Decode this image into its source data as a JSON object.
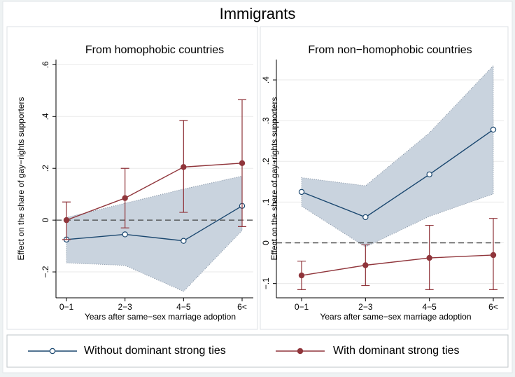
{
  "title": "Immigrants",
  "chart_data": [
    {
      "type": "line",
      "subtitle": "From homophobic countries",
      "y_label": "Effect on the share of gay−rights supporters",
      "x_label": "Years after same−sex marriage adoption",
      "categories": [
        "0−1",
        "2−3",
        "4−5",
        "6<"
      ],
      "ylim": [
        -0.3,
        0.62
      ],
      "yticks": [
        {
          "value": -0.2,
          "label": "−.2"
        },
        0,
        {
          "value": 0.2,
          "label": ".2"
        },
        {
          "value": 0.4,
          "label": ".4"
        },
        {
          "value": 0.6,
          "label": ".6"
        }
      ],
      "reference_line": 0,
      "grid": true,
      "series": [
        {
          "name": "Without dominant strong ties",
          "color": "#1a476f",
          "marker": "hollow",
          "interval": "band",
          "values": [
            -0.075,
            -0.055,
            -0.08,
            0.055
          ],
          "lower": [
            -0.165,
            -0.175,
            -0.275,
            -0.04
          ],
          "upper": [
            0.01,
            0.065,
            0.12,
            0.17
          ]
        },
        {
          "name": "With dominant strong ties",
          "color": "#90353b",
          "marker": "solid",
          "interval": "bars",
          "values": [
            0,
            0.085,
            0.205,
            0.22
          ],
          "lower": [
            -0.075,
            -0.03,
            0.03,
            -0.025
          ],
          "upper": [
            0.07,
            0.2,
            0.385,
            0.465
          ]
        }
      ]
    },
    {
      "type": "line",
      "subtitle": "From non−homophobic countries",
      "y_label": "Effect on the share of gay−rights supporters",
      "x_label": "Years after same−sex marriage adoption",
      "categories": [
        "0−1",
        "2−3",
        "4−5",
        "6<"
      ],
      "ylim": [
        -0.135,
        0.45
      ],
      "yticks": [
        {
          "value": -0.1,
          "label": "−.1"
        },
        0,
        {
          "value": 0.1,
          "label": ".1"
        },
        {
          "value": 0.2,
          "label": ".2"
        },
        {
          "value": 0.3,
          "label": ".3"
        },
        {
          "value": 0.4,
          "label": ".4"
        }
      ],
      "reference_line": 0,
      "grid": true,
      "series": [
        {
          "name": "Without dominant strong ties",
          "color": "#1a476f",
          "marker": "hollow",
          "interval": "band",
          "values": [
            0.125,
            0.063,
            0.168,
            0.278
          ],
          "lower": [
            0.09,
            -0.01,
            0.065,
            0.12
          ],
          "upper": [
            0.16,
            0.14,
            0.27,
            0.435
          ]
        },
        {
          "name": "With dominant strong ties",
          "color": "#90353b",
          "marker": "solid",
          "interval": "bars",
          "values": [
            -0.08,
            -0.055,
            -0.037,
            -0.03
          ],
          "lower": [
            -0.115,
            -0.105,
            -0.115,
            -0.115
          ],
          "upper": [
            -0.045,
            -0.005,
            0.043,
            0.06
          ]
        }
      ]
    }
  ]
}
